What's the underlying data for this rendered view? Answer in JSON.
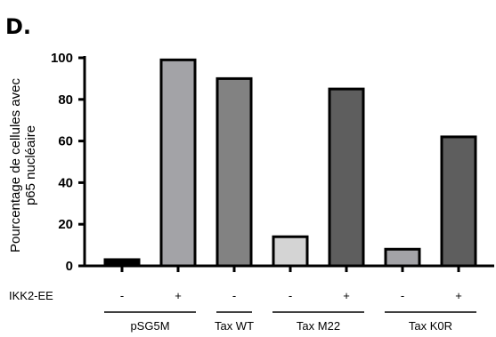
{
  "panel_label": "D.",
  "chart_data": {
    "type": "bar",
    "ylabel": [
      "Pourcentage de cellules avec",
      "p65 nucléaire"
    ],
    "ylim": [
      0,
      100
    ],
    "yticks": [
      0,
      20,
      40,
      60,
      80,
      100
    ],
    "grid": false,
    "factor_label": "IKK2-EE",
    "bars": [
      {
        "ikk2": "-",
        "value": 3,
        "color": "#000000"
      },
      {
        "ikk2": "+",
        "value": 99,
        "color": "#a3a3a7"
      },
      {
        "ikk2": "-",
        "value": 90,
        "color": "#828282"
      },
      {
        "ikk2": "-",
        "value": 14,
        "color": "#d4d4d4"
      },
      {
        "ikk2": "+",
        "value": 85,
        "color": "#5e5e5e"
      },
      {
        "ikk2": "-",
        "value": 8,
        "color": "#a3a3a7"
      },
      {
        "ikk2": "+",
        "value": 62,
        "color": "#5e5e5e"
      }
    ],
    "groups": [
      {
        "label": "pSG5M",
        "bars": [
          0,
          1
        ]
      },
      {
        "label": "Tax WT",
        "bars": [
          2
        ]
      },
      {
        "label": "Tax M22",
        "bars": [
          3,
          4
        ]
      },
      {
        "label": "Tax K0R",
        "bars": [
          5,
          6
        ]
      }
    ]
  }
}
